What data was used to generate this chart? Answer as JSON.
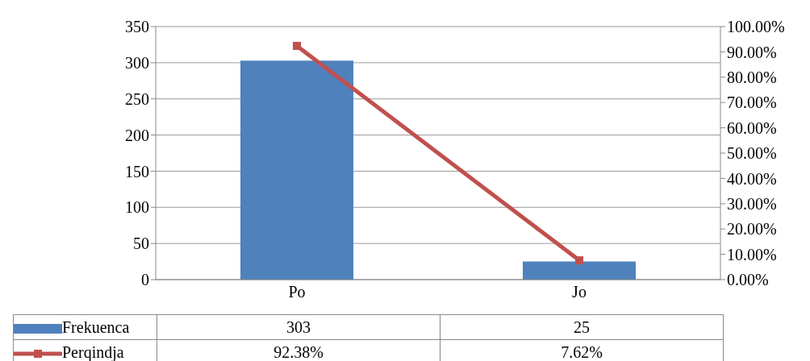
{
  "chart_data": {
    "type": "bar",
    "categories": [
      "Po",
      "Jo"
    ],
    "series": [
      {
        "name": "Frekuenca",
        "color": "#4f81bd",
        "values": [
          303,
          25
        ],
        "value_labels": [
          "303",
          "25"
        ]
      },
      {
        "name": "Perqindja",
        "type": "line",
        "axis": "y2",
        "color": "#c0504d",
        "values": [
          92.38,
          7.62
        ],
        "value_labels": [
          "92.38%",
          "7.62%"
        ]
      }
    ],
    "ylim": [
      0,
      350
    ],
    "yticks": [
      0,
      50,
      100,
      150,
      200,
      250,
      300,
      350
    ],
    "y2lim": [
      0,
      100
    ],
    "y2ticks": [
      {
        "value": 0,
        "label": "0.00%"
      },
      {
        "value": 10,
        "label": "10.00%"
      },
      {
        "value": 20,
        "label": "20.00%"
      },
      {
        "value": 30,
        "label": "30.00%"
      },
      {
        "value": 40,
        "label": "40.00%"
      },
      {
        "value": 50,
        "label": "50.00%"
      },
      {
        "value": 60,
        "label": "60.00%"
      },
      {
        "value": 70,
        "label": "70.00%"
      },
      {
        "value": 80,
        "label": "80.00%"
      },
      {
        "value": 90,
        "label": "90.00%"
      },
      {
        "value": 100,
        "label": "100.00%"
      }
    ],
    "grid": "y",
    "legend": "bottom left",
    "marker": "square",
    "line_style": "solid"
  }
}
